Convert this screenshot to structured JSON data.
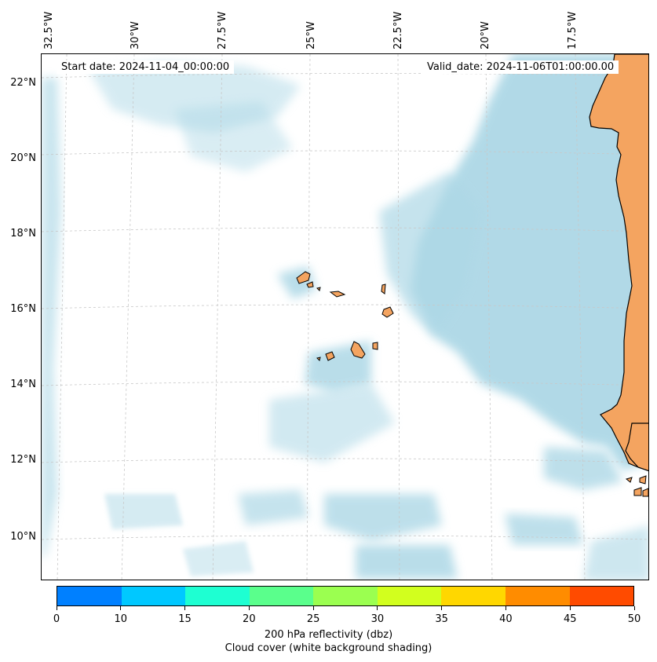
{
  "map": {
    "start_date": "Start date: 2024-11-04_00:00:00",
    "valid_date": "Valid_date: 2024-11-06T01:00:00.00",
    "lon_labels": [
      "32.5°W",
      "30°W",
      "27.5°W",
      "25°W",
      "22.5°W",
      "20°W",
      "17.5°W"
    ],
    "lat_labels": [
      "22°N",
      "20°N",
      "18°N",
      "16°N",
      "14°N",
      "12°N",
      "10°N"
    ],
    "colors": {
      "land": "#f4a460",
      "cloud": "#add8e6",
      "grid": "#c8c8c8"
    }
  },
  "colorbar": {
    "colors": [
      "#0080ff",
      "#00c8ff",
      "#1effd2",
      "#5aff8c",
      "#9bff50",
      "#d2ff1e",
      "#ffd700",
      "#ff8c00",
      "#ff4b00"
    ],
    "ticks": [
      "0",
      "10",
      "15",
      "20",
      "25",
      "30",
      "35",
      "40",
      "45",
      "50"
    ],
    "label_line1": "200 hPa reflectivity (dbz)",
    "label_line2": "Cloud cover (white background shading)"
  }
}
